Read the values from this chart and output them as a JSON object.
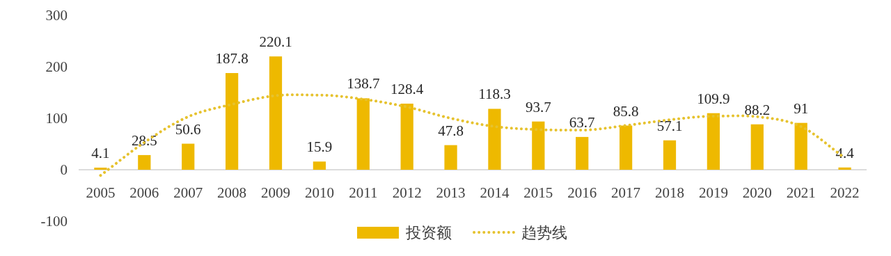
{
  "chart_data": {
    "type": "bar",
    "categories": [
      "2005",
      "2006",
      "2007",
      "2008",
      "2009",
      "2010",
      "2011",
      "2012",
      "2013",
      "2014",
      "2015",
      "2016",
      "2017",
      "2018",
      "2019",
      "2020",
      "2021",
      "2022"
    ],
    "series": [
      {
        "name": "投资额",
        "color": "#eeb900",
        "values": [
          4.1,
          28.5,
          50.6,
          187.8,
          220.1,
          15.9,
          138.7,
          128.4,
          47.8,
          118.3,
          93.7,
          63.7,
          85.8,
          57.1,
          109.9,
          88.2,
          91,
          4.4
        ],
        "value_labels": [
          "4.1",
          "28.5",
          "50.6",
          "187.8",
          "220.1",
          "15.9",
          "138.7",
          "128.4",
          "47.8",
          "118.3",
          "93.7",
          "63.7",
          "85.8",
          "57.1",
          "109.9",
          "88.2",
          "91",
          "4.4"
        ]
      },
      {
        "name": "趋势线",
        "type": "line",
        "color": "#e6c22e",
        "line_style": "dotted",
        "values": [
          -11,
          53,
          103,
          127,
          144,
          145,
          137,
          122,
          100,
          84,
          78,
          77,
          86,
          97,
          104,
          103,
          84,
          23
        ]
      }
    ],
    "ylim": [
      -100,
      300
    ],
    "yticks": [
      -100,
      0,
      100,
      200,
      300
    ],
    "grid": false,
    "legend": "bottom",
    "marker": "none"
  }
}
